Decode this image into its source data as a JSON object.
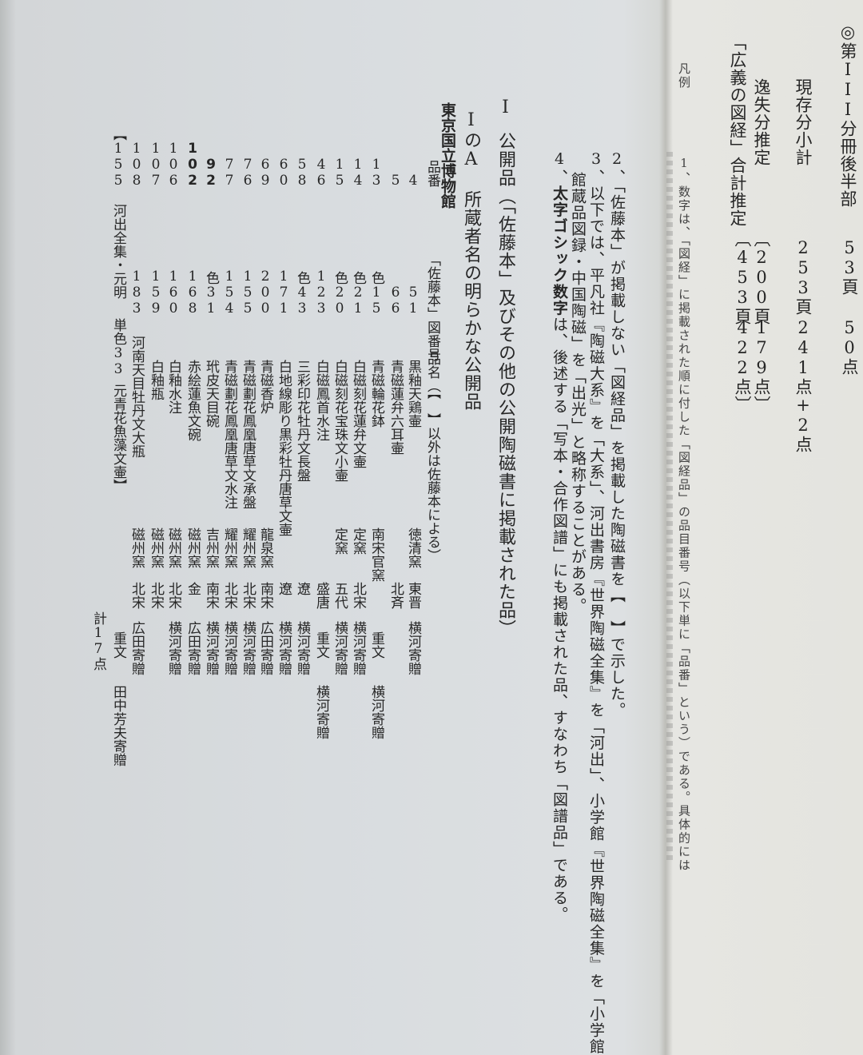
{
  "summary": {
    "volume_label": "◎第III分冊後半部",
    "volume_pages": "53頁",
    "volume_items": "50点",
    "subtotal_label": "現存分小計",
    "subtotal_pages": "253頁",
    "subtotal_items": "241点+2点",
    "lost_label": "逸失分推定",
    "lost_pages": "〔200頁",
    "lost_items": "179点〕",
    "total_label": "「広義の図経」合計推定",
    "total_pages": "〔453頁",
    "total_items": "422点〕"
  },
  "hanrei": {
    "title": "凡例",
    "item1": "1、数字は、「図経」に掲載された順に付した「図経品」の品目番号（以下単に「品番」という）である。具体的には"
  },
  "notes": {
    "note2": "2、「佐藤本」が掲載しない「図経品」を掲載した陶磁書を【　】で示した。",
    "note3_line1": "3、以下では、平凡社『陶磁大系』を「大系」、河出書房『世界陶磁全集』を「河出」、小学館『世界陶磁全集』を「小学館",
    "note3_line2": "館蔵品図録・中国陶磁」を「出光」と略称することがある。",
    "note4_bold": "太字ゴシック数字",
    "note4_prefix": "4、",
    "note4_rest": "は、後述する「写本・合作図譜」にも掲載された品、すなわち「図譜品」である。"
  },
  "section": {
    "number": "I",
    "title": "公開品（「佐藤本」及びその他の公開陶磁書に掲載された品）",
    "sub_number": "IのA",
    "sub_title": "所蔵者名の明らかな公開品",
    "museum": "東京国立博物館"
  },
  "table": {
    "headers": {
      "item_no": "品番",
      "fig_no": "「佐藤本」図番号",
      "name": "品名（【　】以外は佐藤本による）"
    },
    "rows": [
      {
        "no": "4",
        "fig": "51",
        "name": "黒釉天鶏壷",
        "kiln": "徳清窯",
        "period": "東晋",
        "note": "横河寄贈",
        "note2": ""
      },
      {
        "no": "5",
        "fig": "66",
        "name": "青磁蓮弁六耳壷",
        "kiln": "",
        "period": "北斉",
        "note": "",
        "note2": ""
      },
      {
        "no": "13",
        "fig": "色15",
        "name": "青磁輪花鉢",
        "kiln": "南宋官窯",
        "period": "",
        "note": "重文",
        "note2": "横河寄贈"
      },
      {
        "no": "14",
        "fig": "色21",
        "name": "白磁刻花蓮弁文壷",
        "kiln": "定窯",
        "period": "北宋",
        "note": "横河寄贈",
        "note2": ""
      },
      {
        "no": "15",
        "fig": "色20",
        "name": "白磁刻花宝珠文小壷",
        "kiln": "定窯",
        "period": "五代",
        "note": "横河寄贈",
        "note2": ""
      },
      {
        "no": "46",
        "fig": "123",
        "name": "白磁鳳首水注",
        "kiln": "",
        "period": "盛唐",
        "note": "重文",
        "note2": "横河寄贈"
      },
      {
        "no": "58",
        "fig": "色43",
        "name": "三彩印花牡丹文長盤",
        "kiln": "",
        "period": "遼",
        "note": "横河寄贈",
        "note2": ""
      },
      {
        "no": "60",
        "fig": "171",
        "name": "白地線彫り黒彩牡丹唐草文壷",
        "kiln": "",
        "period": "遼",
        "note": "横河寄贈",
        "note2": ""
      },
      {
        "no": "69",
        "fig": "200",
        "name": "青磁香炉",
        "kiln": "龍泉窯",
        "period": "南宋",
        "note": "広田寄贈",
        "note2": ""
      },
      {
        "no": "76",
        "fig": "155",
        "name": "青磁劃花鳳凰唐草文承盤",
        "kiln": "耀州窯",
        "period": "北宋",
        "note": "横河寄贈",
        "note2": ""
      },
      {
        "no": "77",
        "fig": "154",
        "name": "青磁劃花鳳凰唐草文水注",
        "kiln": "耀州窯",
        "period": "北宋",
        "note": "横河寄贈",
        "note2": ""
      },
      {
        "no": "92",
        "bold": true,
        "fig": "色31",
        "name": "玳皮天目碗",
        "kiln": "吉州窯",
        "period": "南宋",
        "note": "横河寄贈",
        "note2": ""
      },
      {
        "no": "102",
        "bold": true,
        "fig": "168",
        "name": "赤絵蓮魚文碗",
        "kiln": "磁州窯",
        "period": "金",
        "note": "広田寄贈",
        "note2": ""
      },
      {
        "no": "106",
        "fig": "160",
        "name": "白釉水注",
        "kiln": "磁州窯",
        "period": "北宋",
        "note": "横河寄贈",
        "note2": ""
      },
      {
        "no": "107",
        "fig": "159",
        "name": "白釉瓶",
        "kiln": "磁州窯",
        "period": "北宋",
        "note": "",
        "note2": ""
      },
      {
        "no": "108",
        "fig": "183",
        "name": "河南天目牡丹文大瓶",
        "kiln": "磁州窯",
        "period": "北宋",
        "note": "広田寄贈",
        "note2": ""
      },
      {
        "no": "【155",
        "source": "河出全集・元明",
        "fig": "単色33",
        "name": "元青花魚藻文壷】",
        "kiln": "",
        "period": "",
        "note": "重文",
        "note2": "田中芳夫寄贈"
      }
    ],
    "total": "計17点"
  }
}
